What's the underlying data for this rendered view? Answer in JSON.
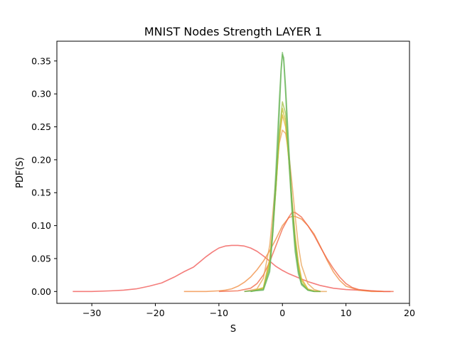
{
  "chart_data": {
    "type": "line",
    "title": "MNIST Nodes Strength LAYER 1",
    "xlabel": "S",
    "ylabel": "PDF(S)",
    "xlim": [
      -35.5,
      20
    ],
    "ylim": [
      -0.018,
      0.38
    ],
    "xticks": [
      -30,
      -20,
      -10,
      0,
      10,
      20
    ],
    "yticks": [
      0.0,
      0.05,
      0.1,
      0.15,
      0.2,
      0.25,
      0.3,
      0.35
    ],
    "xtick_labels": [
      "−30",
      "−20",
      "−10",
      "0",
      "10",
      "20"
    ],
    "ytick_labels": [
      "0.00",
      "0.05",
      "0.10",
      "0.15",
      "0.20",
      "0.25",
      "0.30",
      "0.35"
    ],
    "grid": false,
    "legend": false,
    "series": [
      {
        "color": "#f0524f",
        "x": [
          -33,
          -30,
          -27,
          -25,
          -23,
          -21,
          -19,
          -17,
          -15.5,
          -14,
          -13,
          -12,
          -11,
          -10,
          -9,
          -8,
          -7,
          -6,
          -5,
          -4,
          -3,
          -2,
          -1,
          0,
          1,
          2,
          3,
          4,
          5,
          6,
          7,
          8,
          10,
          12,
          14,
          16,
          17
        ],
        "y": [
          0.0,
          0.0,
          0.001,
          0.002,
          0.004,
          0.008,
          0.013,
          0.022,
          0.03,
          0.037,
          0.045,
          0.053,
          0.06,
          0.066,
          0.069,
          0.07,
          0.07,
          0.069,
          0.066,
          0.061,
          0.054,
          0.046,
          0.038,
          0.032,
          0.027,
          0.023,
          0.019,
          0.015,
          0.012,
          0.009,
          0.007,
          0.005,
          0.003,
          0.002,
          0.001,
          0.0,
          0.0
        ]
      },
      {
        "color": "#f08a3c",
        "x": [
          -15.5,
          -12,
          -10,
          -9,
          -8,
          -7,
          -6,
          -5,
          -4,
          -3,
          -2,
          -1,
          0,
          1,
          1.5,
          2,
          3,
          4,
          5,
          6,
          7,
          8,
          9,
          10,
          12,
          14,
          16
        ],
        "y": [
          0.0,
          0.0,
          0.001,
          0.002,
          0.004,
          0.008,
          0.014,
          0.022,
          0.033,
          0.046,
          0.062,
          0.08,
          0.1,
          0.112,
          0.114,
          0.114,
          0.11,
          0.1,
          0.087,
          0.068,
          0.048,
          0.03,
          0.017,
          0.008,
          0.002,
          0.0,
          0.0
        ]
      },
      {
        "color": "#f06040",
        "x": [
          -10,
          -7,
          -5,
          -4,
          -3,
          -2,
          -1,
          0,
          1,
          1.5,
          2,
          3,
          4,
          5,
          6,
          7,
          8,
          9,
          10,
          11,
          12,
          14,
          16,
          17.5
        ],
        "y": [
          0.0,
          0.001,
          0.005,
          0.012,
          0.025,
          0.045,
          0.07,
          0.095,
          0.113,
          0.12,
          0.12,
          0.113,
          0.1,
          0.085,
          0.067,
          0.05,
          0.035,
          0.022,
          0.012,
          0.006,
          0.003,
          0.001,
          0.0,
          0.0
        ]
      },
      {
        "color": "#e8a050",
        "x": [
          -6,
          -4,
          -3,
          -2,
          -1.5,
          -1,
          -0.5,
          0,
          0.5,
          1,
          1.5,
          2,
          2.5,
          3,
          4,
          5,
          6,
          7
        ],
        "y": [
          0.0,
          0.004,
          0.02,
          0.07,
          0.12,
          0.175,
          0.225,
          0.245,
          0.24,
          0.21,
          0.165,
          0.115,
          0.07,
          0.04,
          0.012,
          0.003,
          0.0,
          0.0
        ]
      },
      {
        "color": "#e0b030",
        "x": [
          -5,
          -3,
          -2,
          -1.5,
          -1,
          -0.5,
          0,
          0.5,
          1,
          1.5,
          2,
          2.5,
          3,
          4,
          5,
          6
        ],
        "y": [
          0.0,
          0.006,
          0.05,
          0.1,
          0.16,
          0.23,
          0.268,
          0.25,
          0.2,
          0.14,
          0.085,
          0.045,
          0.02,
          0.004,
          0.001,
          0.0
        ]
      },
      {
        "color": "#c8c030",
        "x": [
          -5,
          -3,
          -2,
          -1.5,
          -1,
          -0.5,
          0,
          0.5,
          1,
          1.5,
          2,
          2.5,
          3,
          4,
          5,
          6
        ],
        "y": [
          0.0,
          0.005,
          0.045,
          0.095,
          0.16,
          0.235,
          0.278,
          0.258,
          0.2,
          0.135,
          0.08,
          0.04,
          0.017,
          0.003,
          0.0,
          0.0
        ]
      },
      {
        "color": "#a0c040",
        "x": [
          -5,
          -3,
          -2,
          -1.5,
          -1,
          -0.5,
          0,
          0.5,
          1,
          1.5,
          2,
          2.5,
          3,
          4,
          5
        ],
        "y": [
          0.0,
          0.004,
          0.04,
          0.09,
          0.16,
          0.24,
          0.288,
          0.27,
          0.205,
          0.135,
          0.075,
          0.035,
          0.013,
          0.002,
          0.0
        ]
      },
      {
        "color": "#60b050",
        "x": [
          -6,
          -3,
          -2,
          -1.5,
          -1,
          -0.5,
          -0.2,
          0,
          0.2,
          0.5,
          1,
          1.5,
          2,
          2.5,
          3,
          4,
          5,
          6
        ],
        "y": [
          0.0,
          0.002,
          0.03,
          0.09,
          0.17,
          0.27,
          0.335,
          0.36,
          0.355,
          0.31,
          0.22,
          0.135,
          0.07,
          0.032,
          0.012,
          0.002,
          0.0,
          0.0
        ]
      },
      {
        "color": "#70b860",
        "x": [
          -5,
          -3,
          -2,
          -1.5,
          -1,
          -0.5,
          -0.2,
          0,
          0.2,
          0.5,
          1,
          1.5,
          2,
          2.5,
          3,
          4,
          5
        ],
        "y": [
          0.0,
          0.003,
          0.035,
          0.1,
          0.19,
          0.29,
          0.34,
          0.363,
          0.35,
          0.3,
          0.2,
          0.12,
          0.06,
          0.027,
          0.01,
          0.002,
          0.0
        ]
      }
    ]
  }
}
